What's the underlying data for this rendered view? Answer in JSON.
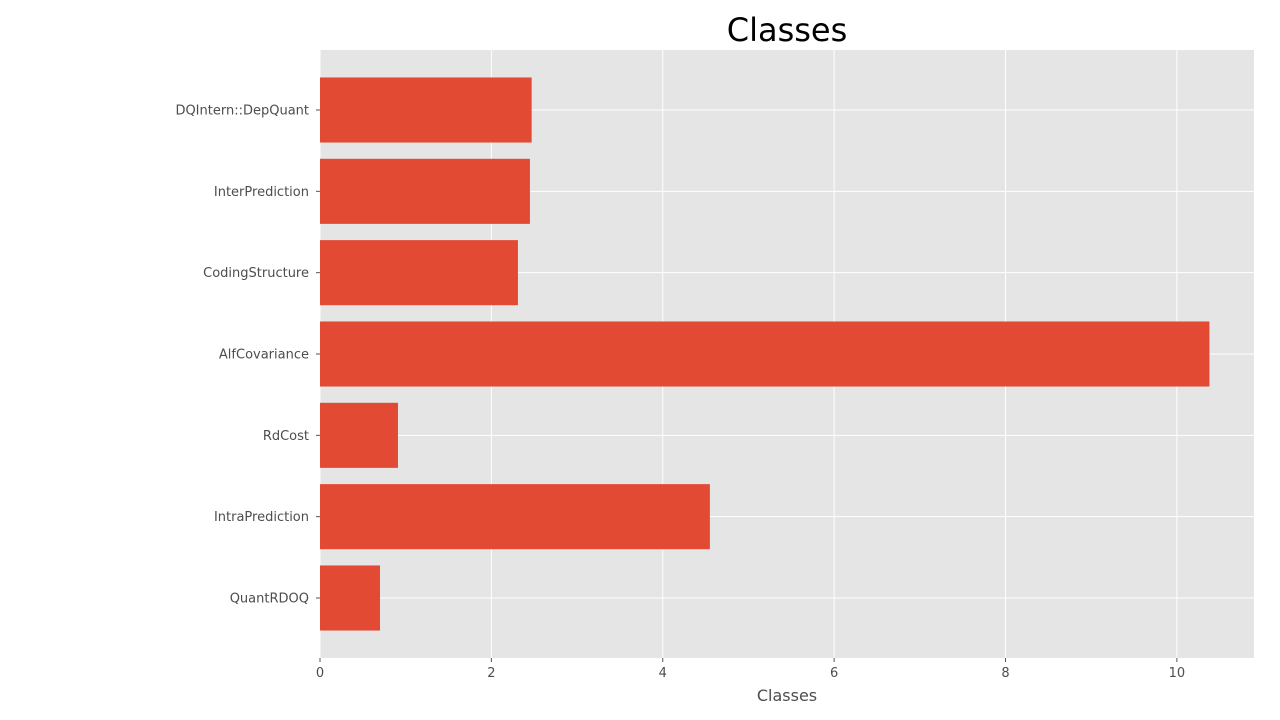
{
  "chart_data": {
    "type": "bar",
    "orientation": "horizontal",
    "title": "Classes",
    "xlabel": "Classes",
    "ylabel": "",
    "categories": [
      "DQIntern::DepQuant",
      "InterPrediction",
      "CodingStructure",
      "AlfCovariance",
      "RdCost",
      "IntraPrediction",
      "QuantRDOQ"
    ],
    "values": [
      2.47,
      2.45,
      2.31,
      10.38,
      0.91,
      4.55,
      0.7
    ],
    "xlim": [
      0,
      10.9
    ],
    "xticks": [
      0,
      2,
      4,
      6,
      8,
      10
    ],
    "grid": true,
    "legend": "none",
    "colors": {
      "bar": "#e24a33",
      "plot_background": "#e5e5e5",
      "grid": "#ffffff",
      "text": "#4d4d4d",
      "title": "#000000"
    }
  }
}
